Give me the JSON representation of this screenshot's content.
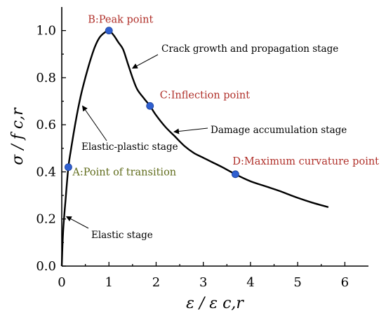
{
  "colors": {
    "curve": "#000000",
    "marker": "#2f5fd0",
    "label_red": "#b0302a",
    "label_olive": "#5f6b1a"
  },
  "chart_data": {
    "type": "line",
    "title": "",
    "xlabel": "ε / ε c,r",
    "ylabel": "σ / f c,r",
    "xlim": [
      0,
      6.5
    ],
    "ylim": [
      0,
      1.1
    ],
    "x_ticks": [
      "0",
      "1",
      "2",
      "3",
      "4",
      "5",
      "6"
    ],
    "y_ticks": [
      "0.0",
      "0.2",
      "0.4",
      "0.6",
      "0.8",
      "1.0"
    ],
    "x_tick_values": [
      0,
      1,
      2,
      3,
      4,
      5,
      6
    ],
    "y_tick_values": [
      0,
      0.2,
      0.4,
      0.6,
      0.8,
      1.0
    ],
    "grid": false,
    "series": [
      {
        "name": "",
        "x": [
          0.0,
          0.03,
          0.08,
          0.14,
          0.2,
          0.3,
          0.4,
          0.5,
          0.6,
          0.7,
          0.8,
          0.9,
          1.0,
          1.1,
          1.2,
          1.3,
          1.4,
          1.5,
          1.6,
          1.75,
          1.87,
          2.0,
          2.2,
          2.4,
          2.6,
          2.8,
          3.0,
          3.2,
          3.4,
          3.68,
          4.0,
          4.3,
          4.6,
          5.0,
          5.3,
          5.65
        ],
        "y": [
          0.0,
          0.15,
          0.28,
          0.42,
          0.5,
          0.62,
          0.72,
          0.8,
          0.87,
          0.93,
          0.97,
          0.99,
          1.0,
          0.98,
          0.95,
          0.92,
          0.86,
          0.8,
          0.75,
          0.71,
          0.68,
          0.64,
          0.59,
          0.55,
          0.51,
          0.48,
          0.46,
          0.44,
          0.42,
          0.39,
          0.36,
          0.34,
          0.32,
          0.29,
          0.27,
          0.25
        ]
      }
    ],
    "key_points": [
      {
        "label": "A:Point of transition",
        "x": 0.14,
        "y": 0.42,
        "color": "#5f6b1a"
      },
      {
        "label": "B:Peak point",
        "x": 1.0,
        "y": 1.0,
        "color": "#b0302a"
      },
      {
        "label": "C:Inflection point",
        "x": 1.87,
        "y": 0.68,
        "color": "#b0302a"
      },
      {
        "label": "D:Maximum curvature point",
        "x": 3.68,
        "y": 0.39,
        "color": "#b0302a"
      }
    ],
    "stage_annotations": [
      {
        "text": "Elastic stage",
        "arrow_to": [
          0.1,
          0.21
        ]
      },
      {
        "text": "Elastic-plastic stage",
        "arrow_to": [
          0.44,
          0.68
        ]
      },
      {
        "text": "Crack growth and propagation stage",
        "arrow_to": [
          1.5,
          0.84
        ]
      },
      {
        "text": "Damage accumulation stage",
        "arrow_to": [
          2.38,
          0.57
        ]
      }
    ]
  }
}
